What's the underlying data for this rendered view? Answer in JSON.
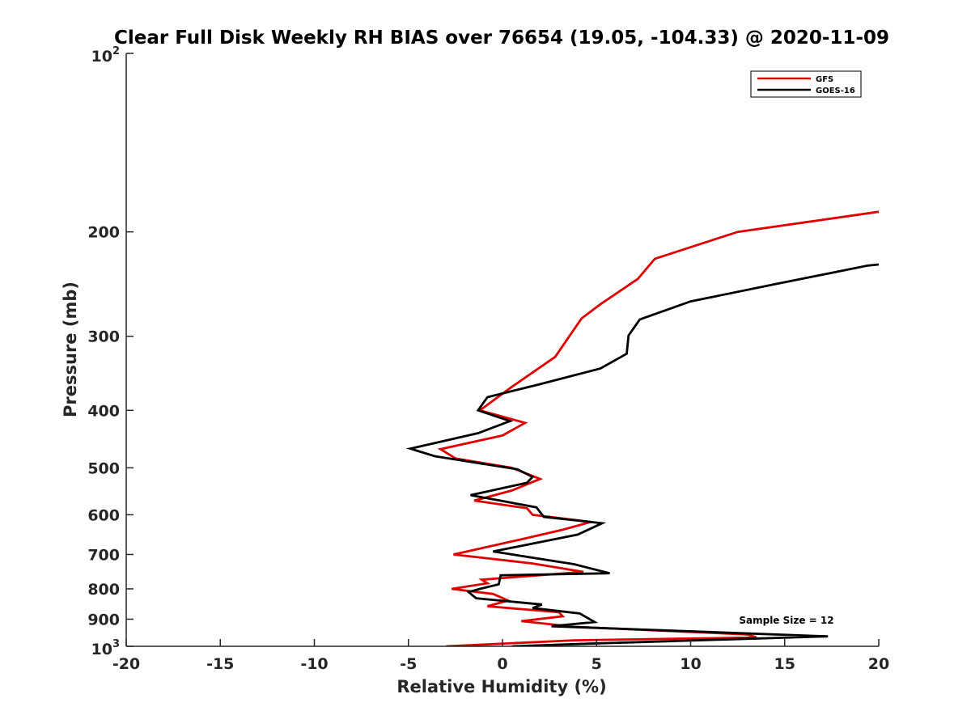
{
  "chart_data": {
    "type": "line",
    "title": "Clear Full Disk Weekly RH BIAS over 76654 (19.05, -104.33) @ 2020-11-09",
    "xlabel": "Relative Humidity (%)",
    "ylabel": "Pressure (mb)",
    "xlim": [
      -20,
      20
    ],
    "ylim": [
      100,
      1000
    ],
    "yscale": "log",
    "y_reversed": true,
    "x_ticks": [
      -20,
      -15,
      -10,
      -5,
      0,
      5,
      10,
      15,
      20
    ],
    "x_tick_labels": [
      "-20",
      "-15",
      "-10",
      "-5",
      "0",
      "5",
      "10",
      "15",
      "20"
    ],
    "y_ticks": [
      200,
      300,
      400,
      500,
      600,
      700,
      800,
      900
    ],
    "y_tick_labels": [
      "200",
      "300",
      "400",
      "500",
      "600",
      "700",
      "800",
      "900"
    ],
    "y_tick_top": {
      "base": "10",
      "exp": "2"
    },
    "y_tick_bottom": {
      "base": "10",
      "exp": "3"
    },
    "legend_position": "top-right",
    "annotation": "Sample Size = 12",
    "series": [
      {
        "name": "GFS",
        "color": "#e00000",
        "points": [
          [
            20.0,
            185
          ],
          [
            12.5,
            200
          ],
          [
            8.1,
            222
          ],
          [
            7.2,
            240
          ],
          [
            5.2,
            265
          ],
          [
            4.2,
            280
          ],
          [
            2.8,
            325
          ],
          [
            0.5,
            365
          ],
          [
            -1.2,
            400
          ],
          [
            1.2,
            420
          ],
          [
            0.0,
            441
          ],
          [
            -3.3,
            465
          ],
          [
            -2.5,
            482
          ],
          [
            0.5,
            500
          ],
          [
            2.0,
            522
          ],
          [
            0.5,
            546
          ],
          [
            -1.5,
            568
          ],
          [
            1.3,
            585
          ],
          [
            1.6,
            600
          ],
          [
            4.7,
            617
          ],
          [
            3.2,
            636
          ],
          [
            1.0,
            660
          ],
          [
            -2.6,
            700
          ],
          [
            1.6,
            725
          ],
          [
            4.3,
            749
          ],
          [
            -1.1,
            772
          ],
          [
            -0.8,
            783
          ],
          [
            -2.7,
            800
          ],
          [
            -0.5,
            816
          ],
          [
            0.3,
            837
          ],
          [
            -0.8,
            856
          ],
          [
            3.0,
            876
          ],
          [
            3.2,
            890
          ],
          [
            1.0,
            907
          ],
          [
            3.8,
            927
          ],
          [
            13.0,
            955
          ],
          [
            13.5,
            966
          ],
          [
            3.8,
            977
          ],
          [
            -3.0,
            1000
          ]
        ]
      },
      {
        "name": "GOES-16",
        "color": "#000000",
        "points": [
          [
            20.0,
            227
          ],
          [
            19.4,
            228
          ],
          [
            14.5,
            245
          ],
          [
            10.0,
            262
          ],
          [
            7.3,
            281
          ],
          [
            6.7,
            299
          ],
          [
            6.6,
            321
          ],
          [
            5.2,
            340
          ],
          [
            1.9,
            362
          ],
          [
            -0.8,
            380
          ],
          [
            -1.3,
            400
          ],
          [
            0.4,
            417
          ],
          [
            -1.3,
            437
          ],
          [
            -4.9,
            464
          ],
          [
            -3.6,
            478
          ],
          [
            0.8,
            503
          ],
          [
            1.6,
            518
          ],
          [
            1.3,
            530
          ],
          [
            -1.7,
            556
          ],
          [
            1.8,
            583
          ],
          [
            2.2,
            605
          ],
          [
            5.3,
            620
          ],
          [
            4.0,
            648
          ],
          [
            -0.5,
            692
          ],
          [
            3.8,
            727
          ],
          [
            5.7,
            753
          ],
          [
            -0.1,
            759
          ],
          [
            -0.2,
            786
          ],
          [
            -1.2,
            800
          ],
          [
            -1.8,
            810
          ],
          [
            -1.4,
            830
          ],
          [
            2.1,
            850
          ],
          [
            1.6,
            862
          ],
          [
            4.1,
            880
          ],
          [
            4.9,
            910
          ],
          [
            2.6,
            925
          ],
          [
            17.3,
            962
          ],
          [
            4.5,
            990
          ],
          [
            0.5,
            1000
          ]
        ]
      }
    ]
  }
}
